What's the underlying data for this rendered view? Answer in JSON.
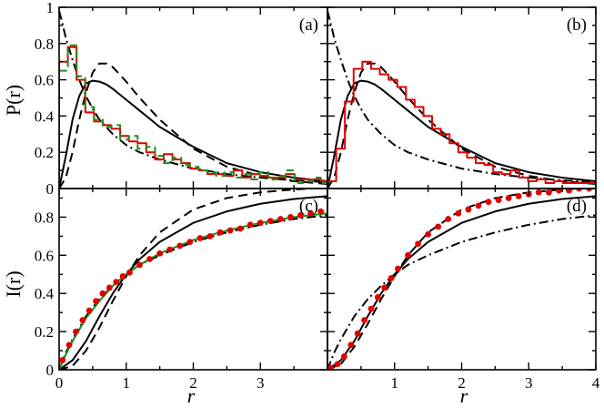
{
  "figure": {
    "ylabel_top": "P(r)",
    "ylabel_bottom": "I(r)",
    "xlabel": "r"
  },
  "chart_data": [
    {
      "type": "line",
      "panel": "a",
      "label": "(a)",
      "xlim": [
        0,
        4
      ],
      "ylim": [
        0,
        1
      ],
      "xticks": [
        0,
        1,
        2,
        3
      ],
      "yticks": [
        0,
        0.2,
        0.4,
        0.6,
        0.8,
        1
      ],
      "ytick_labels": [
        "0",
        "0.2",
        "0.4",
        "0.6",
        "0.8",
        "1"
      ],
      "series": [
        {
          "name": "solid",
          "color": "#000000",
          "style": "solid",
          "x": [
            0,
            0.1,
            0.2,
            0.3,
            0.4,
            0.5,
            0.6,
            0.7,
            0.8,
            1.0,
            1.2,
            1.5,
            2.0,
            2.5,
            3.0,
            3.5,
            4.0
          ],
          "y": [
            0,
            0.18,
            0.38,
            0.51,
            0.58,
            0.595,
            0.59,
            0.575,
            0.55,
            0.49,
            0.43,
            0.34,
            0.23,
            0.14,
            0.09,
            0.06,
            0.04
          ]
        },
        {
          "name": "dashed",
          "color": "#000000",
          "style": "dashed",
          "x": [
            0,
            0.1,
            0.2,
            0.3,
            0.4,
            0.5,
            0.6,
            0.7,
            0.8,
            1.0,
            1.2,
            1.5,
            2.0,
            2.5,
            3.0,
            3.5,
            4.0
          ],
          "y": [
            0,
            0.06,
            0.2,
            0.38,
            0.53,
            0.64,
            0.69,
            0.69,
            0.67,
            0.59,
            0.5,
            0.38,
            0.22,
            0.12,
            0.07,
            0.04,
            0.025
          ]
        },
        {
          "name": "dash-dot",
          "color": "#000000",
          "style": "dashdot",
          "x": [
            0,
            0.05,
            0.1,
            0.2,
            0.3,
            0.4,
            0.5,
            0.6,
            0.8,
            1.0,
            1.2,
            1.5,
            2.0,
            2.5,
            3.0,
            3.5,
            4.0
          ],
          "y": [
            0.98,
            0.91,
            0.83,
            0.71,
            0.6,
            0.51,
            0.44,
            0.38,
            0.3,
            0.24,
            0.2,
            0.16,
            0.11,
            0.08,
            0.06,
            0.045,
            0.035
          ]
        },
        {
          "name": "histogram-red",
          "color": "#e00000",
          "style": "step",
          "edges": [
            0,
            0.13,
            0.26,
            0.39,
            0.52,
            0.65,
            0.78,
            0.91,
            1.04,
            1.17,
            1.3,
            1.43,
            1.56,
            1.69,
            1.82,
            1.95,
            2.08,
            2.21,
            2.34,
            2.47,
            2.6,
            2.73,
            2.86,
            2.99,
            3.12,
            3.25,
            3.38,
            3.51,
            3.64,
            3.77,
            3.9,
            4.0
          ],
          "values": [
            0.7,
            0.78,
            0.6,
            0.42,
            0.37,
            0.35,
            0.33,
            0.29,
            0.26,
            0.25,
            0.2,
            0.16,
            0.19,
            0.16,
            0.14,
            0.11,
            0.1,
            0.08,
            0.08,
            0.07,
            0.1,
            0.06,
            0.08,
            0.07,
            0.06,
            0.06,
            0.08,
            0.05,
            0.05,
            0.05,
            0.04
          ]
        },
        {
          "name": "histogram-green",
          "color": "#1a8f1a",
          "style": "dashedstep",
          "edges": [
            0,
            0.13,
            0.26,
            0.39,
            0.52,
            0.65,
            0.78,
            0.91,
            1.04,
            1.17,
            1.3,
            1.43,
            1.56,
            1.69,
            1.82,
            1.95,
            2.08,
            2.21,
            2.34,
            2.47,
            2.6,
            2.73,
            2.86,
            2.99,
            3.12,
            3.25,
            3.38,
            3.51,
            3.64,
            3.77,
            3.9,
            4.0
          ],
          "values": [
            0.65,
            0.79,
            0.62,
            0.45,
            0.38,
            0.34,
            0.35,
            0.27,
            0.29,
            0.22,
            0.23,
            0.18,
            0.14,
            0.17,
            0.13,
            0.12,
            0.1,
            0.09,
            0.07,
            0.09,
            0.06,
            0.08,
            0.05,
            0.09,
            0.05,
            0.07,
            0.1,
            0.03,
            0.04,
            0.06,
            0.03
          ]
        }
      ]
    },
    {
      "type": "line",
      "panel": "b",
      "label": "(b)",
      "xlim": [
        0,
        4
      ],
      "ylim": [
        0,
        1
      ],
      "series": [
        {
          "name": "solid",
          "color": "#000000",
          "style": "solid",
          "x": [
            0,
            0.1,
            0.2,
            0.3,
            0.4,
            0.5,
            0.6,
            0.7,
            0.8,
            1.0,
            1.2,
            1.5,
            2.0,
            2.5,
            3.0,
            3.5,
            4.0
          ],
          "y": [
            0,
            0.18,
            0.38,
            0.51,
            0.58,
            0.595,
            0.59,
            0.575,
            0.55,
            0.49,
            0.43,
            0.34,
            0.23,
            0.14,
            0.09,
            0.06,
            0.04
          ]
        },
        {
          "name": "dashed",
          "color": "#000000",
          "style": "dashed",
          "x": [
            0,
            0.1,
            0.2,
            0.3,
            0.4,
            0.5,
            0.6,
            0.7,
            0.8,
            1.0,
            1.2,
            1.5,
            2.0,
            2.5,
            3.0,
            3.5,
            4.0
          ],
          "y": [
            0,
            0.06,
            0.2,
            0.38,
            0.53,
            0.64,
            0.69,
            0.69,
            0.67,
            0.59,
            0.5,
            0.38,
            0.22,
            0.12,
            0.07,
            0.04,
            0.025
          ]
        },
        {
          "name": "dash-dot",
          "color": "#000000",
          "style": "dashdot",
          "x": [
            0,
            0.05,
            0.1,
            0.2,
            0.3,
            0.4,
            0.5,
            0.6,
            0.8,
            1.0,
            1.2,
            1.5,
            2.0,
            2.5,
            3.0,
            3.5,
            4.0
          ],
          "y": [
            0.98,
            0.91,
            0.83,
            0.71,
            0.6,
            0.51,
            0.44,
            0.38,
            0.3,
            0.24,
            0.2,
            0.16,
            0.11,
            0.08,
            0.06,
            0.045,
            0.035
          ]
        },
        {
          "name": "histogram-red",
          "color": "#e00000",
          "style": "step",
          "edges": [
            0,
            0.13,
            0.26,
            0.39,
            0.52,
            0.65,
            0.78,
            0.91,
            1.04,
            1.17,
            1.3,
            1.43,
            1.56,
            1.69,
            1.82,
            1.95,
            2.08,
            2.21,
            2.34,
            2.47,
            2.6,
            2.73,
            2.86,
            2.99,
            3.12,
            3.25,
            3.38,
            3.51,
            3.64,
            3.77,
            3.9,
            4.0
          ],
          "values": [
            0.04,
            0.22,
            0.48,
            0.66,
            0.7,
            0.66,
            0.63,
            0.6,
            0.56,
            0.49,
            0.45,
            0.4,
            0.33,
            0.3,
            0.25,
            0.2,
            0.17,
            0.14,
            0.13,
            0.09,
            0.08,
            0.1,
            0.06,
            0.04,
            0.05,
            0.03,
            0.04,
            0.03,
            0.03,
            0.03,
            0.03
          ]
        }
      ]
    },
    {
      "type": "line",
      "panel": "c",
      "label": "(c)",
      "xlim": [
        0,
        4
      ],
      "ylim": [
        0,
        0.95
      ],
      "xticks": [
        0,
        1,
        2,
        3
      ],
      "yticks": [
        0,
        0.2,
        0.4,
        0.6,
        0.8
      ],
      "ytick_labels": [
        "0",
        "0.2",
        "0.4",
        "0.6",
        "0.8"
      ],
      "series": [
        {
          "name": "solid",
          "color": "#000000",
          "style": "solid",
          "x": [
            0,
            0.2,
            0.4,
            0.6,
            0.8,
            1.0,
            1.2,
            1.5,
            2.0,
            2.5,
            3.0,
            3.5,
            4.0
          ],
          "y": [
            0,
            0.05,
            0.15,
            0.28,
            0.4,
            0.5,
            0.58,
            0.67,
            0.77,
            0.83,
            0.87,
            0.895,
            0.91
          ]
        },
        {
          "name": "dashed",
          "color": "#000000",
          "style": "dashed",
          "x": [
            0,
            0.2,
            0.4,
            0.6,
            0.8,
            1.0,
            1.2,
            1.5,
            2.0,
            2.5,
            3.0,
            3.5,
            4.0
          ],
          "y": [
            0,
            0.02,
            0.1,
            0.22,
            0.36,
            0.49,
            0.6,
            0.72,
            0.84,
            0.9,
            0.93,
            0.945,
            0.955
          ]
        },
        {
          "name": "dash-dot",
          "color": "#000000",
          "style": "dashdot",
          "x": [
            0,
            0.1,
            0.2,
            0.4,
            0.6,
            0.8,
            1.0,
            1.2,
            1.5,
            2.0,
            2.5,
            3.0,
            3.5,
            4.0
          ],
          "y": [
            0,
            0.09,
            0.16,
            0.28,
            0.37,
            0.44,
            0.5,
            0.55,
            0.6,
            0.67,
            0.72,
            0.76,
            0.79,
            0.81
          ]
        },
        {
          "name": "green-line",
          "color": "#1a8f1a",
          "style": "solid",
          "x": [
            0,
            0.1,
            0.2,
            0.4,
            0.6,
            0.8,
            1.0,
            1.2,
            1.5,
            2.0,
            2.5,
            3.0,
            3.5,
            4.0
          ],
          "y": [
            0,
            0.08,
            0.15,
            0.27,
            0.36,
            0.44,
            0.5,
            0.55,
            0.61,
            0.68,
            0.73,
            0.77,
            0.8,
            0.82
          ]
        },
        {
          "name": "red-points",
          "color": "#e00000",
          "style": "points",
          "x": [
            0.05,
            0.15,
            0.25,
            0.35,
            0.45,
            0.55,
            0.65,
            0.75,
            0.85,
            0.95,
            1.05,
            1.2,
            1.35,
            1.5,
            1.65,
            1.8,
            1.95,
            2.1,
            2.25,
            2.4,
            2.55,
            2.7,
            2.85,
            3.0,
            3.15,
            3.3,
            3.45,
            3.6,
            3.75,
            3.9
          ],
          "y": [
            0.05,
            0.13,
            0.2,
            0.26,
            0.31,
            0.36,
            0.4,
            0.43,
            0.46,
            0.49,
            0.51,
            0.55,
            0.58,
            0.61,
            0.63,
            0.65,
            0.67,
            0.69,
            0.7,
            0.72,
            0.73,
            0.74,
            0.76,
            0.77,
            0.78,
            0.79,
            0.8,
            0.81,
            0.82,
            0.83
          ]
        }
      ]
    },
    {
      "type": "line",
      "panel": "d",
      "label": "(d)",
      "xlim": [
        0,
        4
      ],
      "ylim": [
        0,
        0.95
      ],
      "xticks": [
        1,
        2,
        3,
        4
      ],
      "series": [
        {
          "name": "solid",
          "color": "#000000",
          "style": "solid",
          "x": [
            0,
            0.2,
            0.4,
            0.6,
            0.8,
            1.0,
            1.2,
            1.5,
            2.0,
            2.5,
            3.0,
            3.5,
            4.0
          ],
          "y": [
            0,
            0.05,
            0.15,
            0.28,
            0.4,
            0.5,
            0.58,
            0.67,
            0.77,
            0.83,
            0.87,
            0.895,
            0.91
          ]
        },
        {
          "name": "dashed",
          "color": "#000000",
          "style": "dashed",
          "x": [
            0,
            0.2,
            0.4,
            0.6,
            0.8,
            1.0,
            1.2,
            1.5,
            2.0,
            2.5,
            3.0,
            3.5,
            4.0
          ],
          "y": [
            0,
            0.03,
            0.12,
            0.24,
            0.37,
            0.49,
            0.6,
            0.72,
            0.84,
            0.9,
            0.93,
            0.945,
            0.955
          ]
        },
        {
          "name": "dash-dot",
          "color": "#000000",
          "style": "dashdot",
          "x": [
            0,
            0.1,
            0.2,
            0.4,
            0.6,
            0.8,
            1.0,
            1.2,
            1.5,
            2.0,
            2.5,
            3.0,
            3.5,
            4.0
          ],
          "y": [
            0,
            0.09,
            0.16,
            0.28,
            0.37,
            0.44,
            0.5,
            0.55,
            0.6,
            0.67,
            0.72,
            0.76,
            0.79,
            0.81
          ]
        },
        {
          "name": "red-points",
          "color": "#e00000",
          "style": "points",
          "x": [
            0.05,
            0.15,
            0.25,
            0.35,
            0.45,
            0.55,
            0.65,
            0.75,
            0.85,
            0.95,
            1.05,
            1.2,
            1.35,
            1.5,
            1.65,
            1.8,
            1.95,
            2.1,
            2.25,
            2.4,
            2.55,
            2.7,
            2.85,
            3.0,
            3.15,
            3.3,
            3.45,
            3.6,
            3.75,
            3.9
          ],
          "y": [
            0.01,
            0.03,
            0.07,
            0.13,
            0.19,
            0.26,
            0.32,
            0.38,
            0.43,
            0.48,
            0.53,
            0.6,
            0.66,
            0.71,
            0.75,
            0.79,
            0.82,
            0.84,
            0.86,
            0.88,
            0.89,
            0.9,
            0.91,
            0.92,
            0.93,
            0.93,
            0.94,
            0.94,
            0.95,
            0.95
          ]
        }
      ]
    }
  ]
}
